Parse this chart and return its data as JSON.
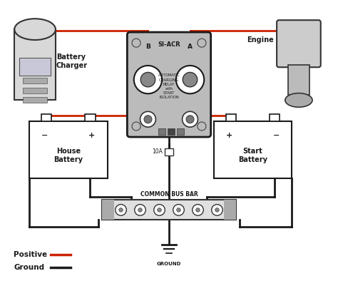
{
  "fig_width": 4.74,
  "fig_height": 4.08,
  "dpi": 100,
  "bg_color": "#ffffff",
  "positive_color": "#cc2200",
  "ground_color": "#1a1a1a",
  "legend_positive_label": "Positive",
  "legend_ground_label": "Ground",
  "relay_title": "SI-ACR",
  "relay_subtitle": "AUTOMATIC\nCHARGING\nRELAY\nwith\nSTART\nISOLATION",
  "house_battery_label": "House\nBattery",
  "start_battery_label": "Start\nBattery",
  "battery_charger_label": "Battery\nCharger",
  "engine_label": "Engine",
  "bus_bar_label": "COMMON BUS BAR",
  "ground_label": "GROUND",
  "fuse_label": "10A"
}
